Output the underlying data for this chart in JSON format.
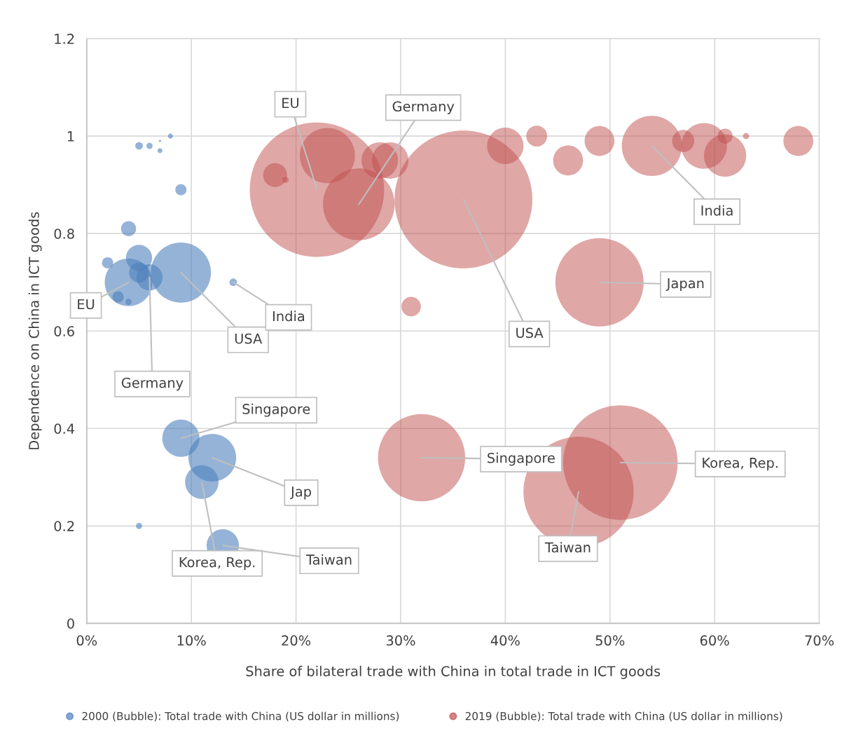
{
  "chart_data": {
    "type": "bubble",
    "xlabel": "Share of bilateral trade with China in total trade in ICT goods",
    "ylabel": "Dependence on China in ICT goods",
    "xlim": [
      0,
      70
    ],
    "ylim": [
      0,
      1.2
    ],
    "xticks": [
      {
        "value": 0,
        "label": "0%"
      },
      {
        "value": 10,
        "label": "10%"
      },
      {
        "value": 20,
        "label": "20%"
      },
      {
        "value": 30,
        "label": "30%"
      },
      {
        "value": 40,
        "label": "40%"
      },
      {
        "value": 50,
        "label": "50%"
      },
      {
        "value": 60,
        "label": "60%"
      },
      {
        "value": 70,
        "label": "70%"
      }
    ],
    "yticks": [
      0,
      0.2,
      0.4,
      0.6,
      0.8,
      1,
      1.2
    ],
    "grid": true,
    "legend": "bottom",
    "series": [
      {
        "name": "2000 (Bubble): Total trade with China (US dollar in millions)",
        "color": "#4f81bd",
        "x": [
          5,
          6,
          7,
          7,
          8,
          9,
          4,
          2,
          5,
          4,
          5,
          6,
          9,
          3,
          4,
          14,
          9,
          12,
          11,
          13,
          5
        ],
        "values": [
          0.98,
          0.98,
          0.99,
          0.97,
          1.0,
          0.89,
          0.81,
          0.74,
          0.75,
          0.7,
          0.72,
          0.71,
          0.72,
          0.67,
          0.66,
          0.7,
          0.38,
          0.34,
          0.29,
          0.16,
          0.2
        ],
        "sizes": [
          0.003,
          0.002,
          0.0003,
          0.0013,
          0.0013,
          0.0066,
          0.012,
          0.0066,
          0.036,
          0.12,
          0.021,
          0.036,
          0.19,
          0.0066,
          0.002,
          0.003,
          0.073,
          0.12,
          0.059,
          0.055,
          0.002
        ]
      },
      {
        "name": "2019 (Bubble): Total trade with China (US dollar in millions)",
        "color": "#c0504d",
        "x": [
          22,
          36,
          51,
          47,
          32,
          49,
          26,
          54,
          23,
          28,
          29,
          18,
          19,
          31,
          40,
          43,
          46,
          49,
          57,
          59,
          61,
          61,
          63,
          68
        ],
        "values": [
          0.89,
          0.87,
          0.33,
          0.27,
          0.34,
          0.7,
          0.86,
          0.98,
          0.96,
          0.95,
          0.95,
          0.92,
          0.91,
          0.65,
          0.98,
          1.0,
          0.95,
          0.99,
          0.99,
          0.98,
          0.96,
          1.0,
          1.0,
          0.99
        ],
        "sizes": [
          0.95,
          1,
          0.69,
          0.64,
          0.4,
          0.41,
          0.27,
          0.19,
          0.16,
          0.07,
          0.07,
          0.03,
          0.002,
          0.02,
          0.07,
          0.023,
          0.047,
          0.047,
          0.026,
          0.11,
          0.094,
          0.012,
          0.002,
          0.047
        ]
      }
    ],
    "annotations": [
      {
        "text": "EU",
        "x": 4,
        "y": 0.7
      },
      {
        "text": "Germany",
        "x": 6,
        "y": 0.71
      },
      {
        "text": "USA",
        "x": 9,
        "y": 0.72
      },
      {
        "text": "India",
        "x": 14,
        "y": 0.7
      },
      {
        "text": "Singapore",
        "x": 9,
        "y": 0.38
      },
      {
        "text": "Jap",
        "x": 12,
        "y": 0.34
      },
      {
        "text": "Korea, Rep.",
        "x": 11,
        "y": 0.29
      },
      {
        "text": "Taiwan",
        "x": 13,
        "y": 0.16
      },
      {
        "text": "EU",
        "x": 22,
        "y": 0.89
      },
      {
        "text": "Germany",
        "x": 26,
        "y": 0.86
      },
      {
        "text": "USA",
        "x": 36,
        "y": 0.87
      },
      {
        "text": "India",
        "x": 54,
        "y": 0.98
      },
      {
        "text": "Japan",
        "x": 49,
        "y": 0.7
      },
      {
        "text": "Singapore",
        "x": 32,
        "y": 0.34
      },
      {
        "text": "Korea, Rep.",
        "x": 51,
        "y": 0.33
      },
      {
        "text": "Taiwan",
        "x": 47,
        "y": 0.27
      }
    ]
  }
}
